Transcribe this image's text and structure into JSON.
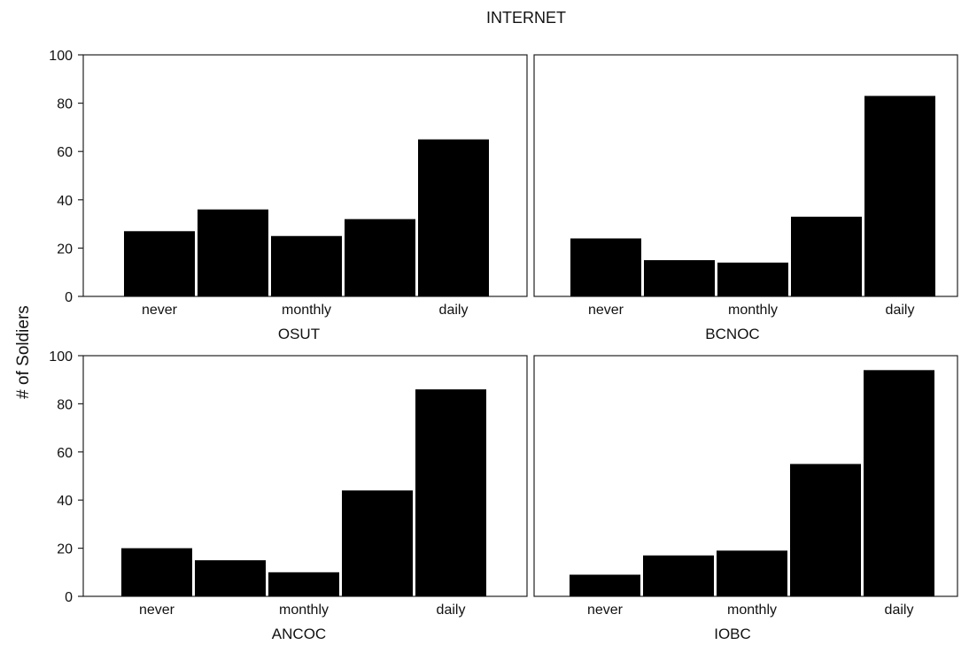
{
  "chart_data": {
    "type": "bar",
    "title": "INTERNET",
    "ylabel": "# of Soldiers",
    "ylim": [
      0,
      100
    ],
    "yticks": [
      0,
      20,
      40,
      60,
      80,
      100
    ],
    "layout": "2x2 grid of panels",
    "grid": false,
    "legend": "none",
    "bar_color": "#000000",
    "category_labels": [
      "never",
      "monthly",
      "daily"
    ],
    "category_label_positions": [
      1,
      3,
      5
    ],
    "bar_count": 5,
    "panels": [
      {
        "title": "OSUT",
        "values": [
          27,
          36,
          25,
          32,
          65
        ]
      },
      {
        "title": "BCNOC",
        "values": [
          24,
          15,
          14,
          33,
          83
        ]
      },
      {
        "title": "ANCOC",
        "values": [
          20,
          15,
          10,
          44,
          86
        ]
      },
      {
        "title": "IOBC",
        "values": [
          9,
          17,
          19,
          55,
          94
        ]
      }
    ]
  }
}
